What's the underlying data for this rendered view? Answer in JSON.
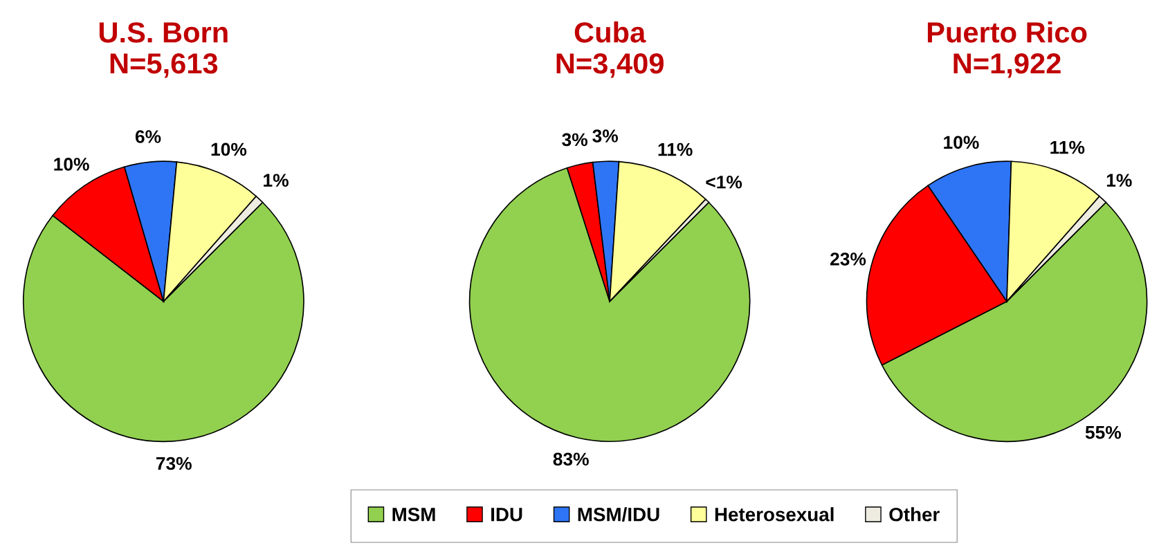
{
  "chart_data": [
    {
      "type": "pie",
      "title": "U.S. Born\nN=5,613",
      "categories": [
        "MSM",
        "IDU",
        "MSM/IDU",
        "Heterosexual",
        "Other"
      ],
      "values": [
        73,
        10,
        6,
        10,
        1
      ],
      "value_labels": [
        "73%",
        "10%",
        "6%",
        "10%",
        "1%"
      ],
      "colors": [
        "#92d050",
        "#ff0000",
        "#2e75f6",
        "#ffff99",
        "#eeece1"
      ],
      "legend": "bottom"
    },
    {
      "type": "pie",
      "title": "Cuba\nN=3,409",
      "categories": [
        null,
        null,
        null,
        null,
        null
      ],
      "values": [
        83,
        3,
        3,
        11,
        0.5
      ],
      "value_labels": [
        "83%",
        "3%",
        "3%",
        "11%",
        "<1%"
      ],
      "colors": [
        "#92d050",
        "#ff0000",
        "#2e75f6",
        "#ffff99",
        "#eeece1"
      ],
      "legend": false
    },
    {
      "type": "pie",
      "title": "Puerto Rico\nN=1,922",
      "categories": [
        null,
        null,
        null,
        null,
        null
      ],
      "values": [
        55,
        23,
        10,
        11,
        1
      ],
      "value_labels": [
        "55%",
        "23%",
        "10%",
        "11%",
        "1%"
      ],
      "colors": [
        "#92d050",
        "#ff0000",
        "#2e75f6",
        "#ffff99",
        "#eeece1"
      ],
      "legend": false
    }
  ]
}
